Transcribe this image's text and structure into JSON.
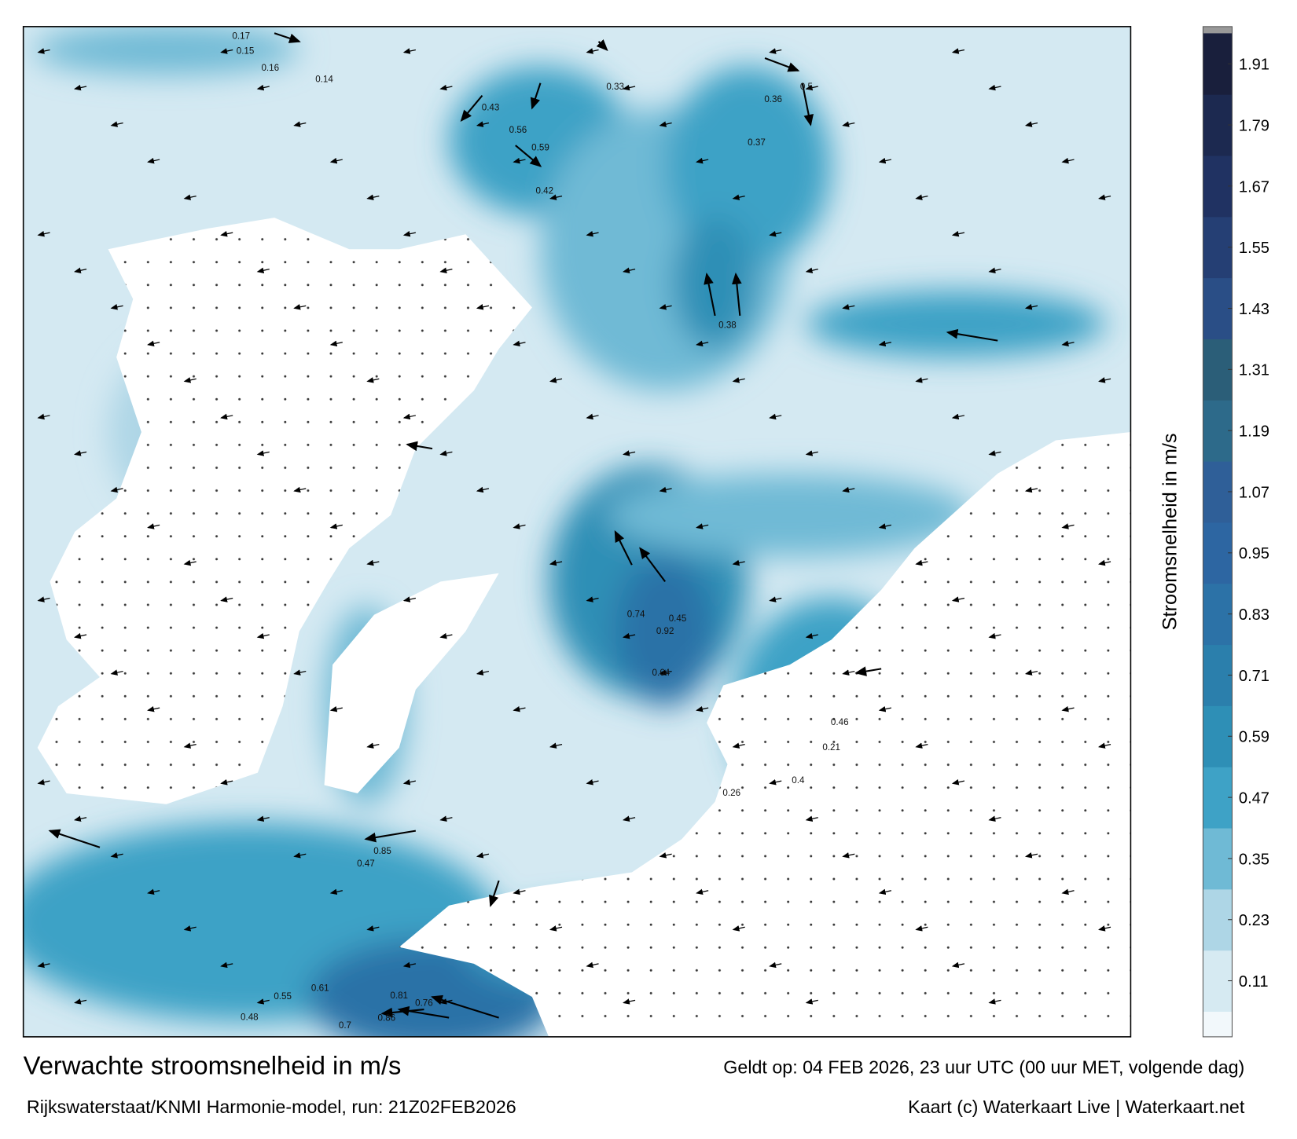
{
  "map": {
    "title": "Verwachte stroomsnelheid in m/s",
    "valid_time": "Geldt op: 04 FEB 2026, 23 uur UTC (00 uur MET, volgende dag)",
    "source": "Rijkswaterstaat/KNMI Harmonie-model, run: 21Z02FEB2026",
    "credit": "Kaart (c) Waterkaart Live | Waterkaart.net",
    "speed_labels": [
      0.17,
      0.15,
      0.16,
      0.14,
      0.33,
      0.56,
      0.59,
      0.42,
      0.36,
      0.43,
      0.37,
      0.5,
      0.38,
      0.45,
      0.92,
      0.74,
      0.64,
      0.47,
      0.85,
      0.76,
      0.81,
      0.86,
      0.55,
      0.48,
      0.61,
      0.7,
      0.4,
      0.21,
      0.26,
      0.46
    ]
  },
  "colorbar": {
    "label": "Stroomsnelheid in m/s",
    "clim": [
      0,
      1.97
    ],
    "ticks": [
      0.11,
      0.23,
      0.35,
      0.47,
      0.59,
      0.71,
      0.83,
      0.95,
      1.07,
      1.19,
      1.31,
      1.43,
      1.55,
      1.67,
      1.79,
      1.91
    ],
    "colors": [
      "#f2f8fb",
      "#d6eaf2",
      "#aed6e6",
      "#6fbad5",
      "#3ea2c6",
      "#2e8fb6",
      "#2b7fac",
      "#2c72a7",
      "#2d66a2",
      "#2f5f98",
      "#2d6a8a",
      "#2b5e78",
      "#2a4e86",
      "#253f74",
      "#203262",
      "#1c2950",
      "#191f3c"
    ]
  }
}
